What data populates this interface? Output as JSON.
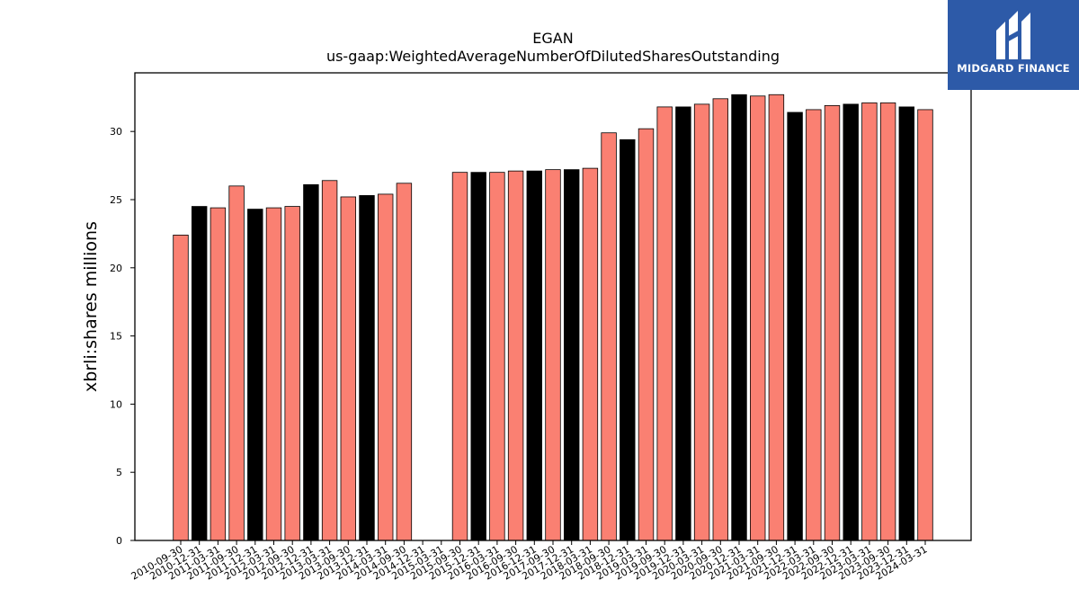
{
  "chart_data": {
    "type": "bar",
    "title": "EGAN",
    "subtitle": "us-gaap:WeightedAverageNumberOfDilutedSharesOutstanding",
    "xlabel": "",
    "ylabel": "xbrli:shares millions",
    "ylim": [
      0,
      34.3
    ],
    "yticks": [
      0,
      5,
      10,
      15,
      20,
      25,
      30
    ],
    "grid": false,
    "colors": {
      "regular": "#fa8072",
      "highlight": "#000000",
      "edge": "#000000"
    },
    "categories": [
      "2010-09-30",
      "2010-12-31",
      "2011-03-31",
      "2011-09-30",
      "2011-12-31",
      "2012-03-31",
      "2012-09-30",
      "2012-12-31",
      "2013-03-31",
      "2013-09-30",
      "2013-12-31",
      "2014-03-31",
      "2014-09-30",
      "2014-12-31",
      "2015-03-31",
      "2015-09-30",
      "2015-12-31",
      "2016-03-31",
      "2016-09-30",
      "2016-12-31",
      "2017-09-30",
      "2017-12-31",
      "2018-03-31",
      "2018-09-30",
      "2018-12-31",
      "2019-03-31",
      "2019-09-30",
      "2019-12-31",
      "2020-03-31",
      "2020-09-30",
      "2020-12-31",
      "2021-03-31",
      "2021-09-30",
      "2021-12-31",
      "2022-03-31",
      "2022-09-30",
      "2022-12-31",
      "2023-03-31",
      "2023-09-30",
      "2023-12-31",
      "2024-03-31"
    ],
    "values": [
      22.4,
      24.5,
      24.4,
      26.0,
      24.3,
      24.4,
      24.5,
      26.1,
      26.4,
      25.2,
      25.3,
      25.4,
      26.2,
      0,
      0,
      27.0,
      27.0,
      27.0,
      27.1,
      27.1,
      27.2,
      27.2,
      27.3,
      29.9,
      29.4,
      30.2,
      31.8,
      31.8,
      32.0,
      32.4,
      32.7,
      32.6,
      32.7,
      31.4,
      31.6,
      31.9,
      32.0,
      32.1,
      32.1,
      31.8,
      31.6
    ],
    "highlight": [
      false,
      true,
      false,
      false,
      true,
      false,
      false,
      true,
      false,
      false,
      true,
      false,
      false,
      true,
      false,
      false,
      true,
      false,
      false,
      true,
      false,
      true,
      false,
      false,
      true,
      false,
      false,
      true,
      false,
      false,
      true,
      false,
      false,
      true,
      false,
      false,
      true,
      false,
      false,
      true,
      false
    ]
  },
  "logo": {
    "name": "MIDGARD FINANCE",
    "icon": "midgard-logo-icon"
  }
}
